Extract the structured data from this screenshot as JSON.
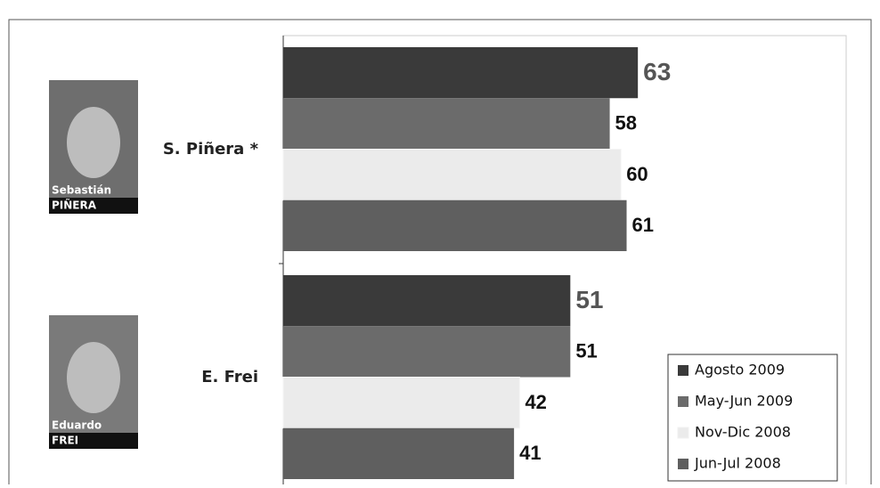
{
  "chart_data": {
    "type": "bar",
    "orientation": "horizontal",
    "categories": [
      "S. Piñera *",
      "E. Frei"
    ],
    "photo_captions": [
      [
        "Sebastián",
        "PIÑERA"
      ],
      [
        "Eduardo",
        "FREI"
      ]
    ],
    "xlim": [
      0,
      100
    ],
    "series": [
      {
        "name": "Agosto 2009",
        "color": "#3a3a3a",
        "values": [
          63,
          51
        ]
      },
      {
        "name": "May-Jun 2009",
        "color": "#6b6b6b",
        "values": [
          58,
          51
        ]
      },
      {
        "name": "Nov-Dic 2008",
        "color": "#ebebeb",
        "values": [
          60,
          42
        ]
      },
      {
        "name": "Jun-Jul 2008",
        "color": "#5f5f5f",
        "values": [
          61,
          41
        ]
      }
    ],
    "legend": "bottom-right"
  }
}
